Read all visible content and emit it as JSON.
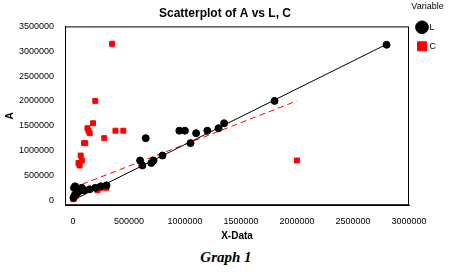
{
  "chart_data": {
    "type": "scatter",
    "title": "Scatterplot of A vs L, C",
    "caption": "Graph 1",
    "x_label": "X-Data",
    "y_label": "A",
    "legend": "right",
    "legend_title": "Variable",
    "grid": false,
    "xlim": [
      -70000,
      3000000
    ],
    "xticks": [
      0,
      500000,
      1000000,
      1500000,
      2000000,
      2500000,
      3000000
    ],
    "ylim": [
      -100000,
      3500000
    ],
    "yticks": [
      0,
      500000,
      1000000,
      1500000,
      2000000,
      2500000,
      3000000,
      3500000
    ],
    "series": [
      {
        "name": "L",
        "color": "#000000",
        "marker": "circle",
        "line_style": "solid",
        "x": [
          5000,
          10000,
          15000,
          20000,
          30000,
          40000,
          50000,
          60000,
          80000,
          100000,
          150000,
          200000,
          250000,
          300000,
          600000,
          620000,
          650000,
          700000,
          720000,
          800000,
          950000,
          1000000,
          1050000,
          1100000,
          1200000,
          1300000,
          1350000,
          1800000,
          2800000
        ],
        "values": [
          50000,
          250000,
          100000,
          280000,
          200000,
          150000,
          170000,
          220000,
          250000,
          200000,
          220000,
          250000,
          280000,
          300000,
          800000,
          700000,
          1250000,
          750000,
          800000,
          900000,
          1400000,
          1400000,
          1150000,
          1350000,
          1400000,
          1450000,
          1550000,
          2000000,
          3130000
        ],
        "fit": {
          "x": [
            0,
            2800000
          ],
          "values": [
            0,
            3140000
          ]
        }
      },
      {
        "name": "C",
        "color": "#ff0000",
        "marker": "square",
        "line_style": "dashed",
        "x": [
          5000,
          10000,
          20000,
          30000,
          40000,
          50000,
          60000,
          70000,
          80000,
          100000,
          100000,
          110000,
          130000,
          140000,
          150000,
          150000,
          180000,
          200000,
          220000,
          250000,
          280000,
          300000,
          350000,
          380000,
          450000,
          2000000
        ],
        "values": [
          20000,
          50000,
          80000,
          100000,
          150000,
          750000,
          700000,
          900000,
          800000,
          1150000,
          200000,
          1150000,
          1450000,
          1400000,
          1350000,
          220000,
          1550000,
          2000000,
          200000,
          250000,
          1250000,
          250000,
          3150000,
          1400000,
          1400000,
          800000
        ],
        "fit": {
          "x": [
            0,
            2000000
          ],
          "values": [
            250000,
            2000000
          ]
        }
      }
    ]
  }
}
